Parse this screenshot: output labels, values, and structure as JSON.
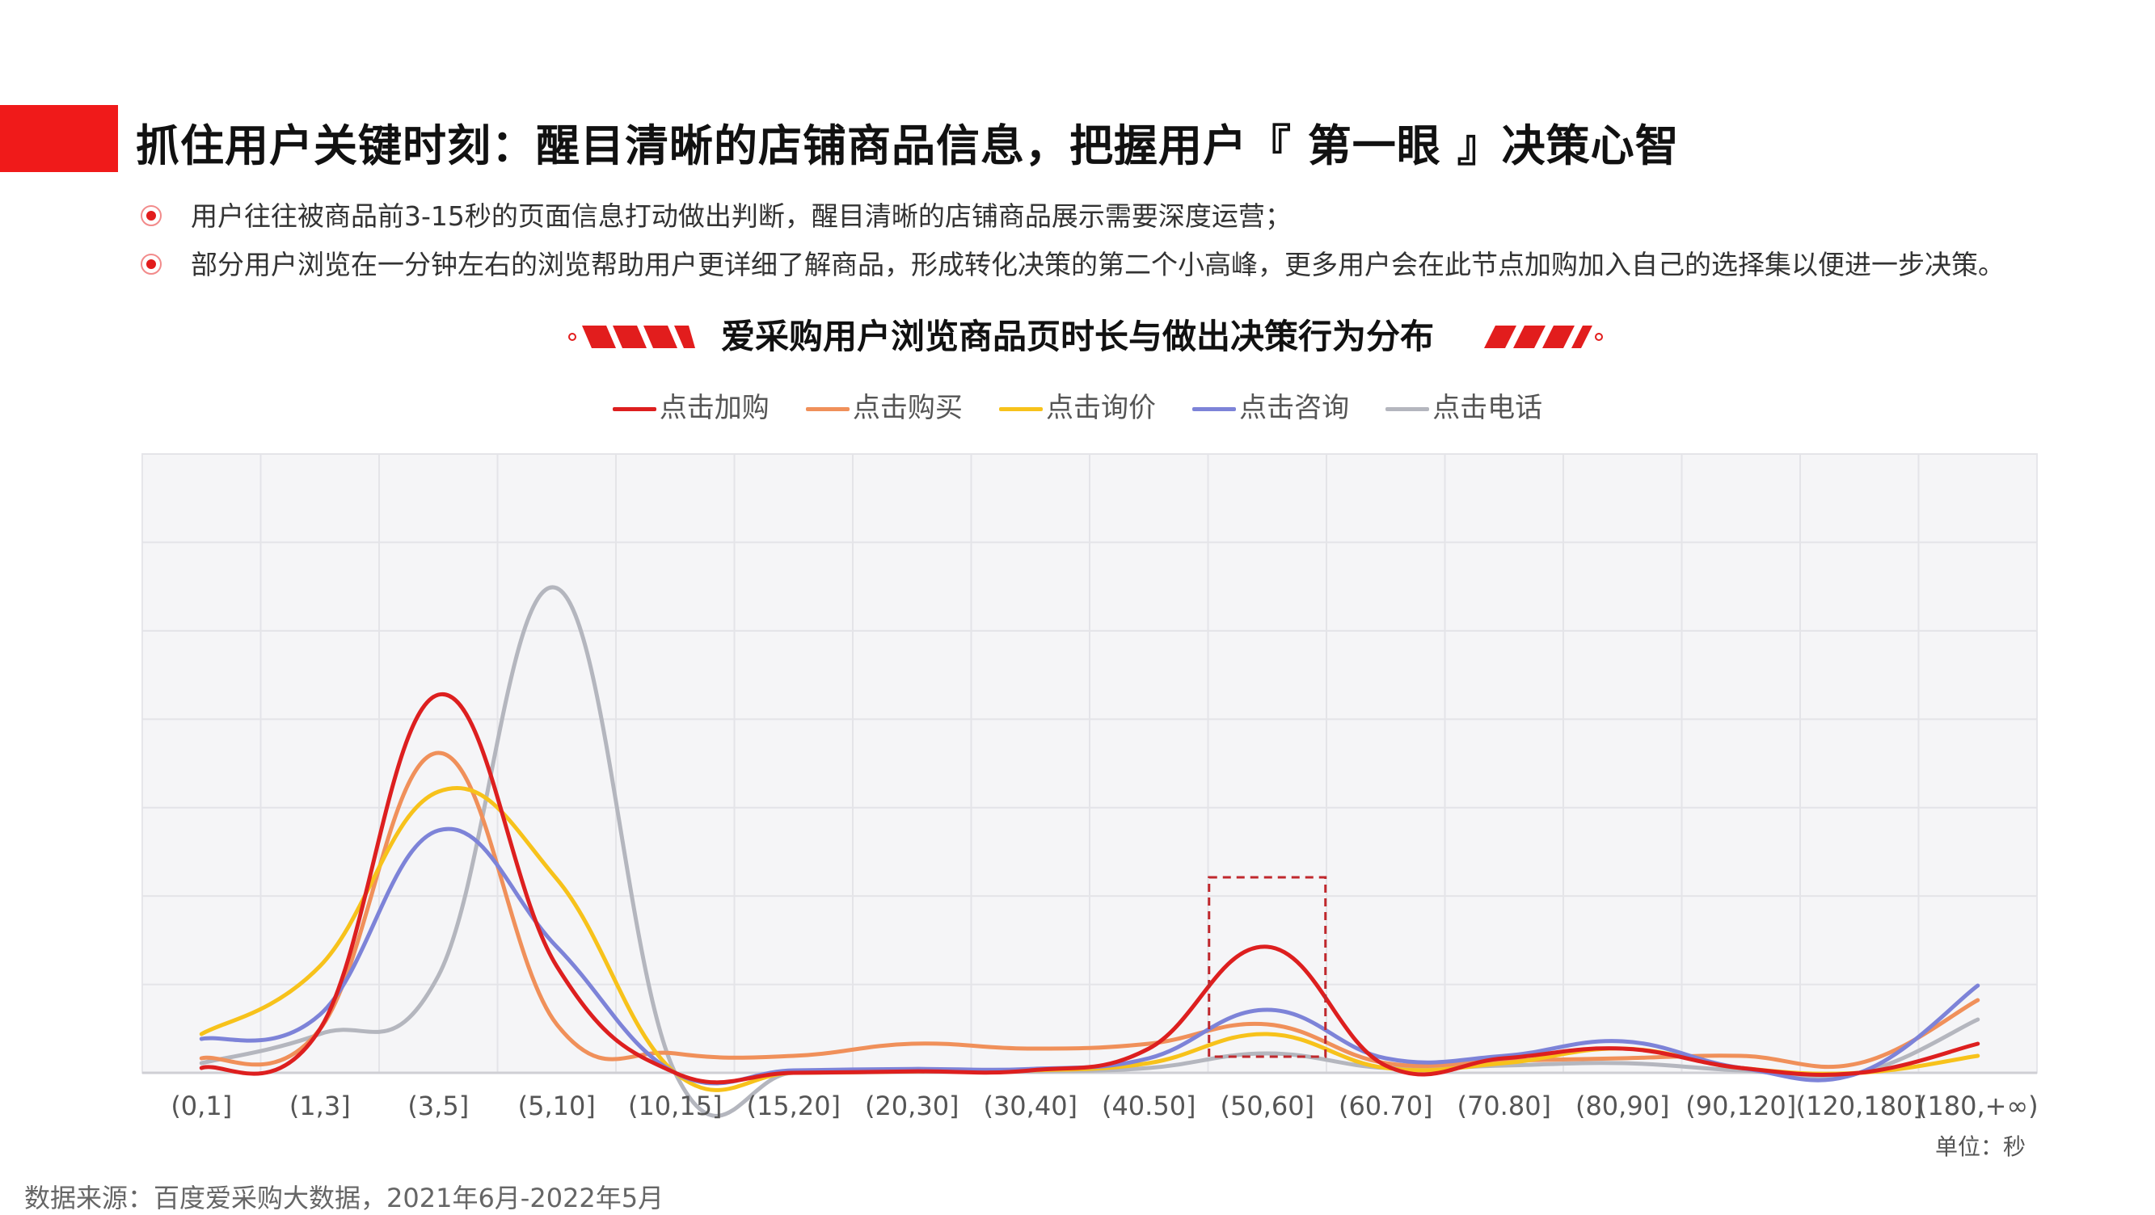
{
  "headline": "抓住用户关键时刻：醒目清晰的店铺商品信息，把握用户『 第一眼 』决策心智",
  "bullets": [
    "用户往往被商品前3-15秒的页面信息打动做出判断，醒目清晰的店铺商品展示需要深度运营；",
    "部分用户浏览在一分钟左右的浏览帮助用户更详细了解商品，形成转化决策的第二个小高峰，更多用户会在此节点加购加入自己的选择集以便进一步决策。"
  ],
  "unit_label": "单位：秒",
  "source": "数据来源：百度爱采购大数据，2021年6月-2022年5月",
  "colors": {
    "accent": "#f01a1a",
    "series": [
      "#dd1f1f",
      "#f0905a",
      "#f7c21b",
      "#7d83d8",
      "#b4b6be"
    ],
    "plot_background": "#f5f5f7",
    "grid": "#e4e4e8",
    "highlight_box": "#c0282d"
  },
  "chart_data": {
    "type": "line",
    "title": "爱采购用户浏览商品页时长与做出决策行为分布",
    "xlabel": "",
    "ylabel": "",
    "categories": [
      "(0,1]",
      "(1,3]",
      "(3,5]",
      "(5,10]",
      "(10,15]",
      "(15,20]",
      "(20,30]",
      "(30,40]",
      "(40.50]",
      "(50,60]",
      "(60.70]",
      "(70.80]",
      "(80,90]",
      "(90,120]",
      "(120,180]",
      "(180,+∞)"
    ],
    "ylim": [
      0,
      100
    ],
    "grid": true,
    "legend_position": "top",
    "smooth": true,
    "highlight_category": "(50,60]",
    "series": [
      {
        "name": "点击加购",
        "values": [
          1,
          9,
          78,
          22,
          0,
          0,
          0.3,
          0.5,
          5,
          26,
          1.5,
          3,
          5,
          1,
          0,
          6
        ]
      },
      {
        "name": "点击购买",
        "values": [
          3,
          9,
          66,
          10,
          4,
          3.5,
          6,
          5,
          6,
          10,
          2,
          2.5,
          3,
          3.5,
          2,
          15
        ]
      },
      {
        "name": "点击询价",
        "values": [
          8,
          22,
          58,
          40,
          0,
          0,
          0.3,
          0.5,
          2,
          8,
          1,
          2,
          5,
          1,
          0,
          3.5
        ]
      },
      {
        "name": "点击咨询",
        "values": [
          7,
          12,
          50,
          26,
          0,
          0.5,
          0.8,
          0.8,
          3,
          13,
          3,
          3.5,
          6.5,
          1,
          0,
          18
        ]
      },
      {
        "name": "点击电话",
        "values": [
          2,
          8,
          20,
          100,
          0,
          0,
          0.2,
          0.3,
          1,
          4,
          1,
          1.5,
          2,
          0.5,
          0,
          11
        ]
      }
    ]
  }
}
